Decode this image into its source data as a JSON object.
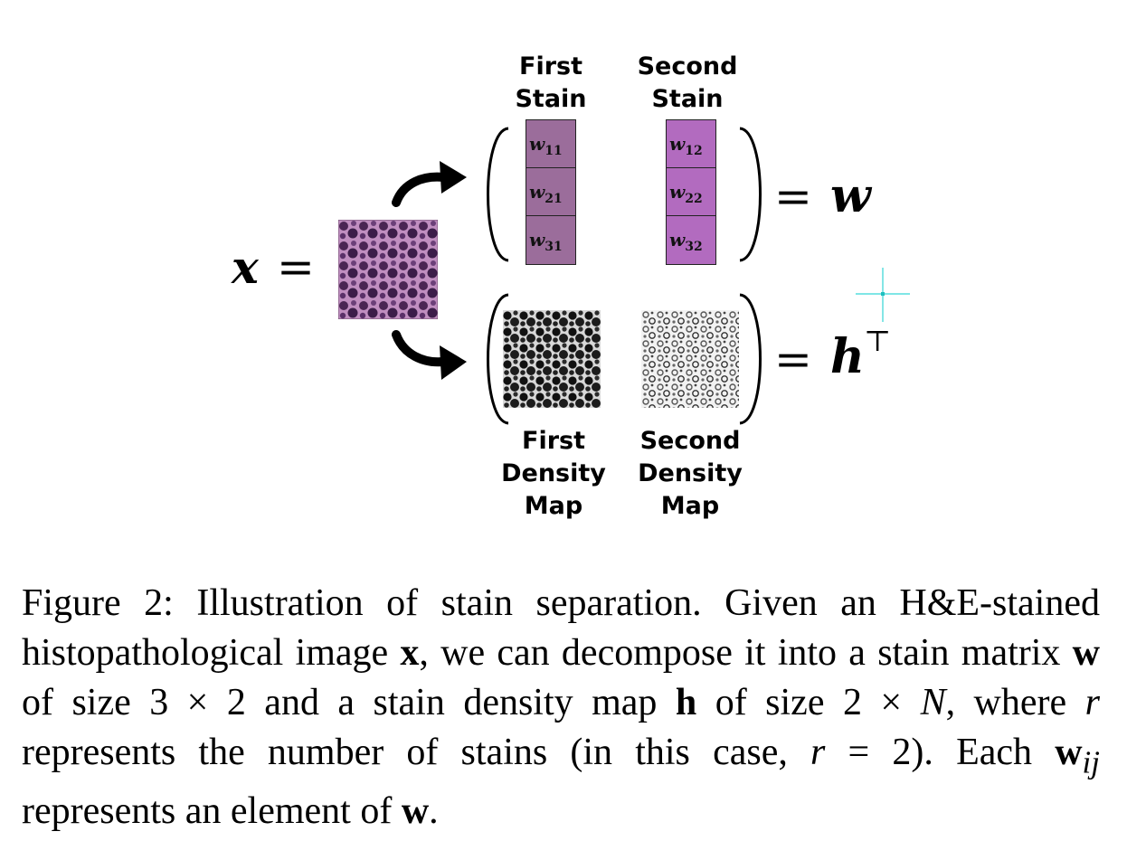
{
  "diagram": {
    "x_label": "x",
    "equals": "=",
    "first_stain_label": "First Stain",
    "second_stain_label": "Second Stain",
    "stain_matrix_cells": [
      [
        {
          "base": "w",
          "sub": "11"
        },
        {
          "base": "w",
          "sub": "21"
        },
        {
          "base": "w",
          "sub": "31"
        }
      ],
      [
        {
          "base": "w",
          "sub": "12"
        },
        {
          "base": "w",
          "sub": "22"
        },
        {
          "base": "w",
          "sub": "32"
        }
      ]
    ],
    "w_symbol": "w",
    "h_symbol": "h",
    "transpose": "⊤",
    "first_density_label": "First Density Map",
    "second_density_label": "Second Density Map",
    "colors": {
      "first_stain": "#9b6d9b",
      "second_stain": "#b26bbf"
    }
  },
  "caption": {
    "label": "Figure 2:",
    "t1": " Illustration of stain separation. Given an H&E-stained histopathological image ",
    "x": "x",
    "t2": ", we can decompose it into a stain matrix ",
    "w1": "w",
    "t3": " of size ",
    "size1": "3 × 2",
    "t4": " and a stain density map ",
    "h": "h",
    "t5": " of size ",
    "size2a": "2 × ",
    "N": "N",
    "t6": ", where ",
    "r1": "r",
    "t7": " represents the number of stains (in this case, ",
    "r2": "r",
    "t8": " = 2). Each ",
    "wij_base": "w",
    "wij_sub": "ij",
    "t9": " represents an element of ",
    "w2": "w",
    "t10": "."
  }
}
